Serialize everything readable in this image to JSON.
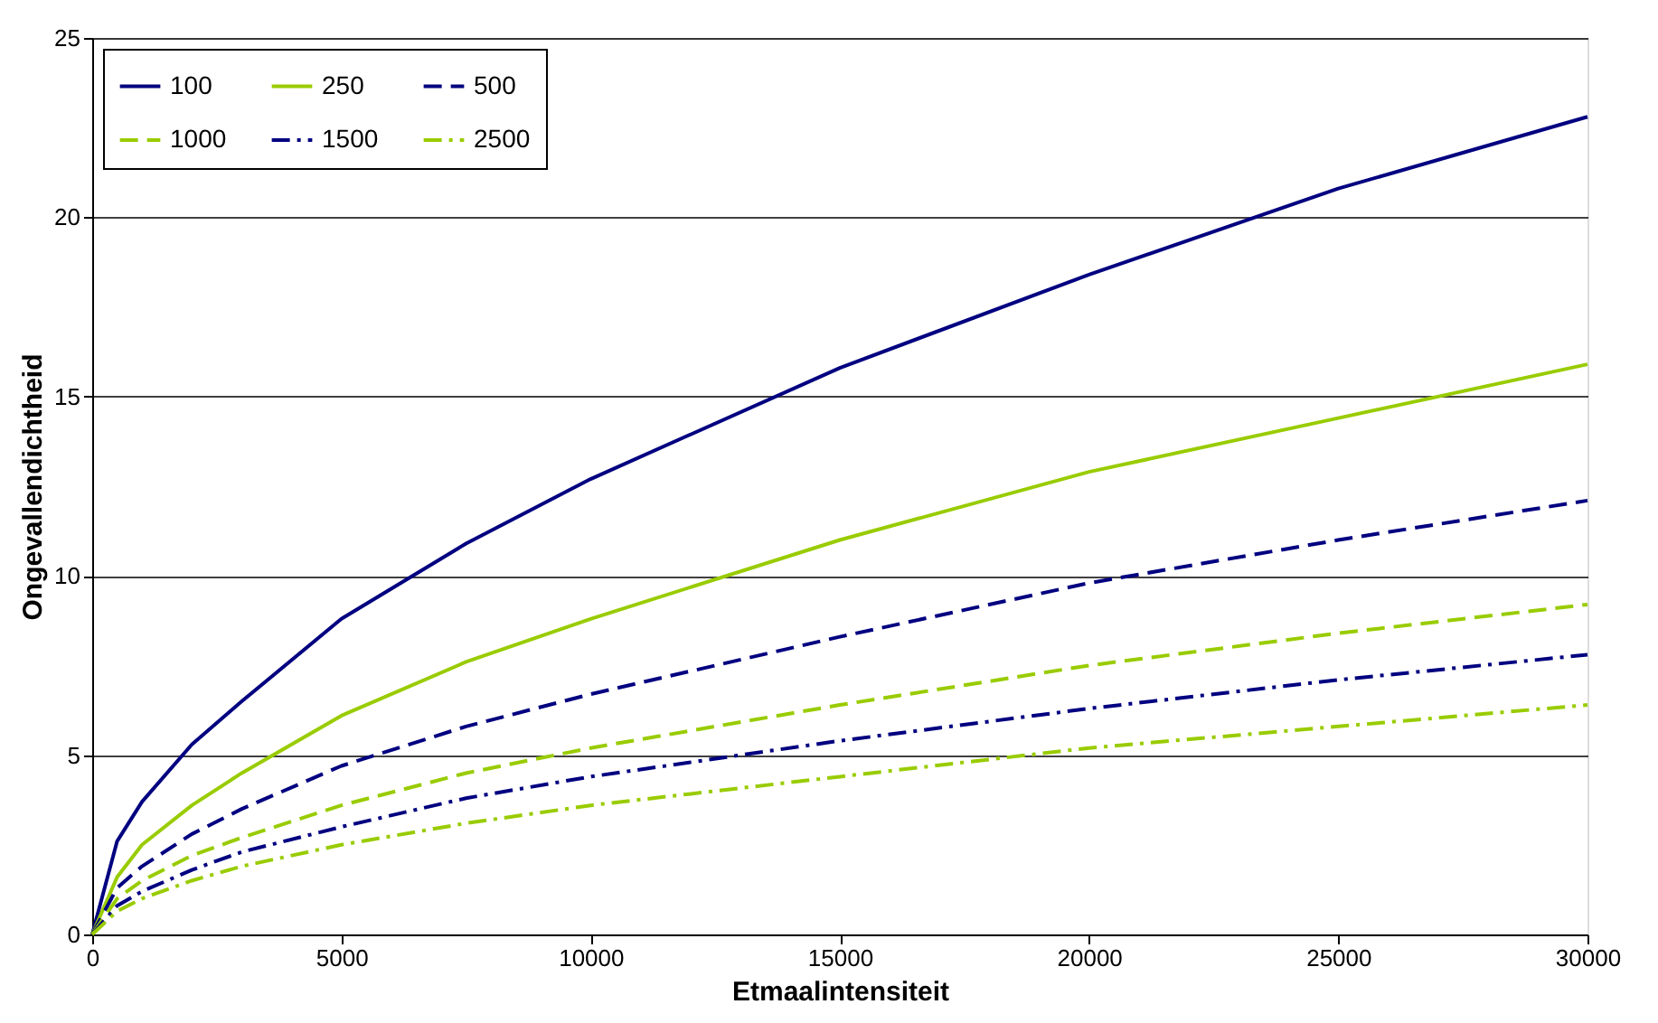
{
  "chart_data": {
    "type": "line",
    "xlabel": "Etmaalintensiteit",
    "ylabel": "Ongevallendichtheid",
    "x": [
      0,
      500,
      1000,
      2000,
      3000,
      5000,
      7500,
      10000,
      15000,
      20000,
      25000,
      30000
    ],
    "xlim": [
      0,
      30000
    ],
    "xticks": [
      0,
      5000,
      10000,
      15000,
      20000,
      25000,
      30000
    ],
    "ylim": [
      0,
      25
    ],
    "yticks": [
      0,
      5,
      10,
      15,
      20,
      25
    ],
    "grid": "y",
    "legend": "top left",
    "marker": "none",
    "series": [
      {
        "name": "100",
        "color": "#000080",
        "line_style": "solid",
        "values": [
          0,
          2.6,
          3.7,
          5.3,
          6.5,
          8.8,
          10.9,
          12.7,
          15.8,
          18.4,
          20.8,
          22.8
        ]
      },
      {
        "name": "250",
        "color": "#99cc00",
        "line_style": "solid",
        "values": [
          0,
          1.6,
          2.5,
          3.6,
          4.5,
          6.1,
          7.6,
          8.8,
          11.0,
          12.9,
          14.4,
          15.9
        ]
      },
      {
        "name": "500",
        "color": "#000080",
        "line_style": "dashed",
        "values": [
          0,
          1.3,
          1.9,
          2.8,
          3.5,
          4.7,
          5.8,
          6.7,
          8.3,
          9.8,
          11.0,
          12.1
        ]
      },
      {
        "name": "1000",
        "color": "#99cc00",
        "line_style": "dashed",
        "values": [
          0,
          1.0,
          1.5,
          2.2,
          2.7,
          3.6,
          4.5,
          5.2,
          6.4,
          7.5,
          8.4,
          9.2
        ]
      },
      {
        "name": "1500",
        "color": "#000080",
        "line_style": "dashdot",
        "values": [
          0,
          0.8,
          1.2,
          1.8,
          2.3,
          3.0,
          3.8,
          4.4,
          5.4,
          6.3,
          7.1,
          7.8
        ]
      },
      {
        "name": "2500",
        "color": "#99cc00",
        "line_style": "dashdot",
        "values": [
          0,
          0.65,
          1.0,
          1.5,
          1.9,
          2.5,
          3.1,
          3.6,
          4.4,
          5.2,
          5.8,
          6.4
        ]
      }
    ]
  }
}
